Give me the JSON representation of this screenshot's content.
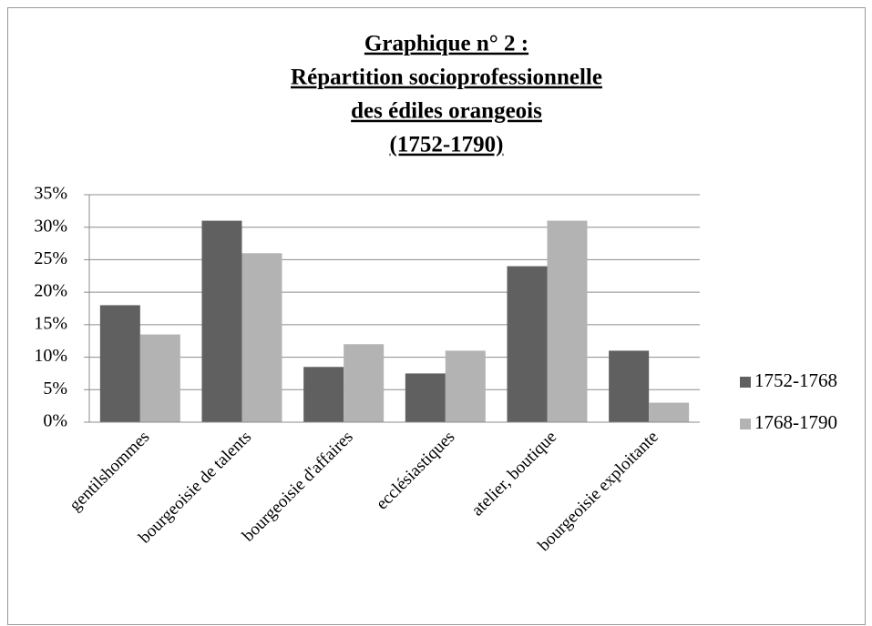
{
  "chart_data": {
    "type": "bar",
    "title": [
      "Graphique n° 2 :",
      "Répartition socioprofessionnelle",
      "des édiles orangeois",
      "(1752-1790)"
    ],
    "categories": [
      "gentilshommes",
      "bourgeoisie de talents",
      "bourgeoisie d'affaires",
      "ecclésiastiques",
      "atelier, boutique",
      "bourgeoisie exploitante"
    ],
    "series": [
      {
        "name": "1752-1768",
        "color": "#606060",
        "values": [
          18,
          31,
          8.5,
          7.5,
          24,
          11
        ]
      },
      {
        "name": "1768-1790",
        "color": "#b3b3b3",
        "values": [
          13.5,
          26,
          12,
          11,
          31,
          3
        ]
      }
    ],
    "ylim": [
      0,
      35
    ],
    "yticks": [
      {
        "value": 0,
        "label": "0%"
      },
      {
        "value": 5,
        "label": "5%"
      },
      {
        "value": 10,
        "label": "10%"
      },
      {
        "value": 15,
        "label": "15%"
      },
      {
        "value": 20,
        "label": "20%"
      },
      {
        "value": 25,
        "label": "25%"
      },
      {
        "value": 30,
        "label": "30%"
      },
      {
        "value": 35,
        "label": "35%"
      }
    ],
    "grid": true,
    "legend": "right"
  }
}
